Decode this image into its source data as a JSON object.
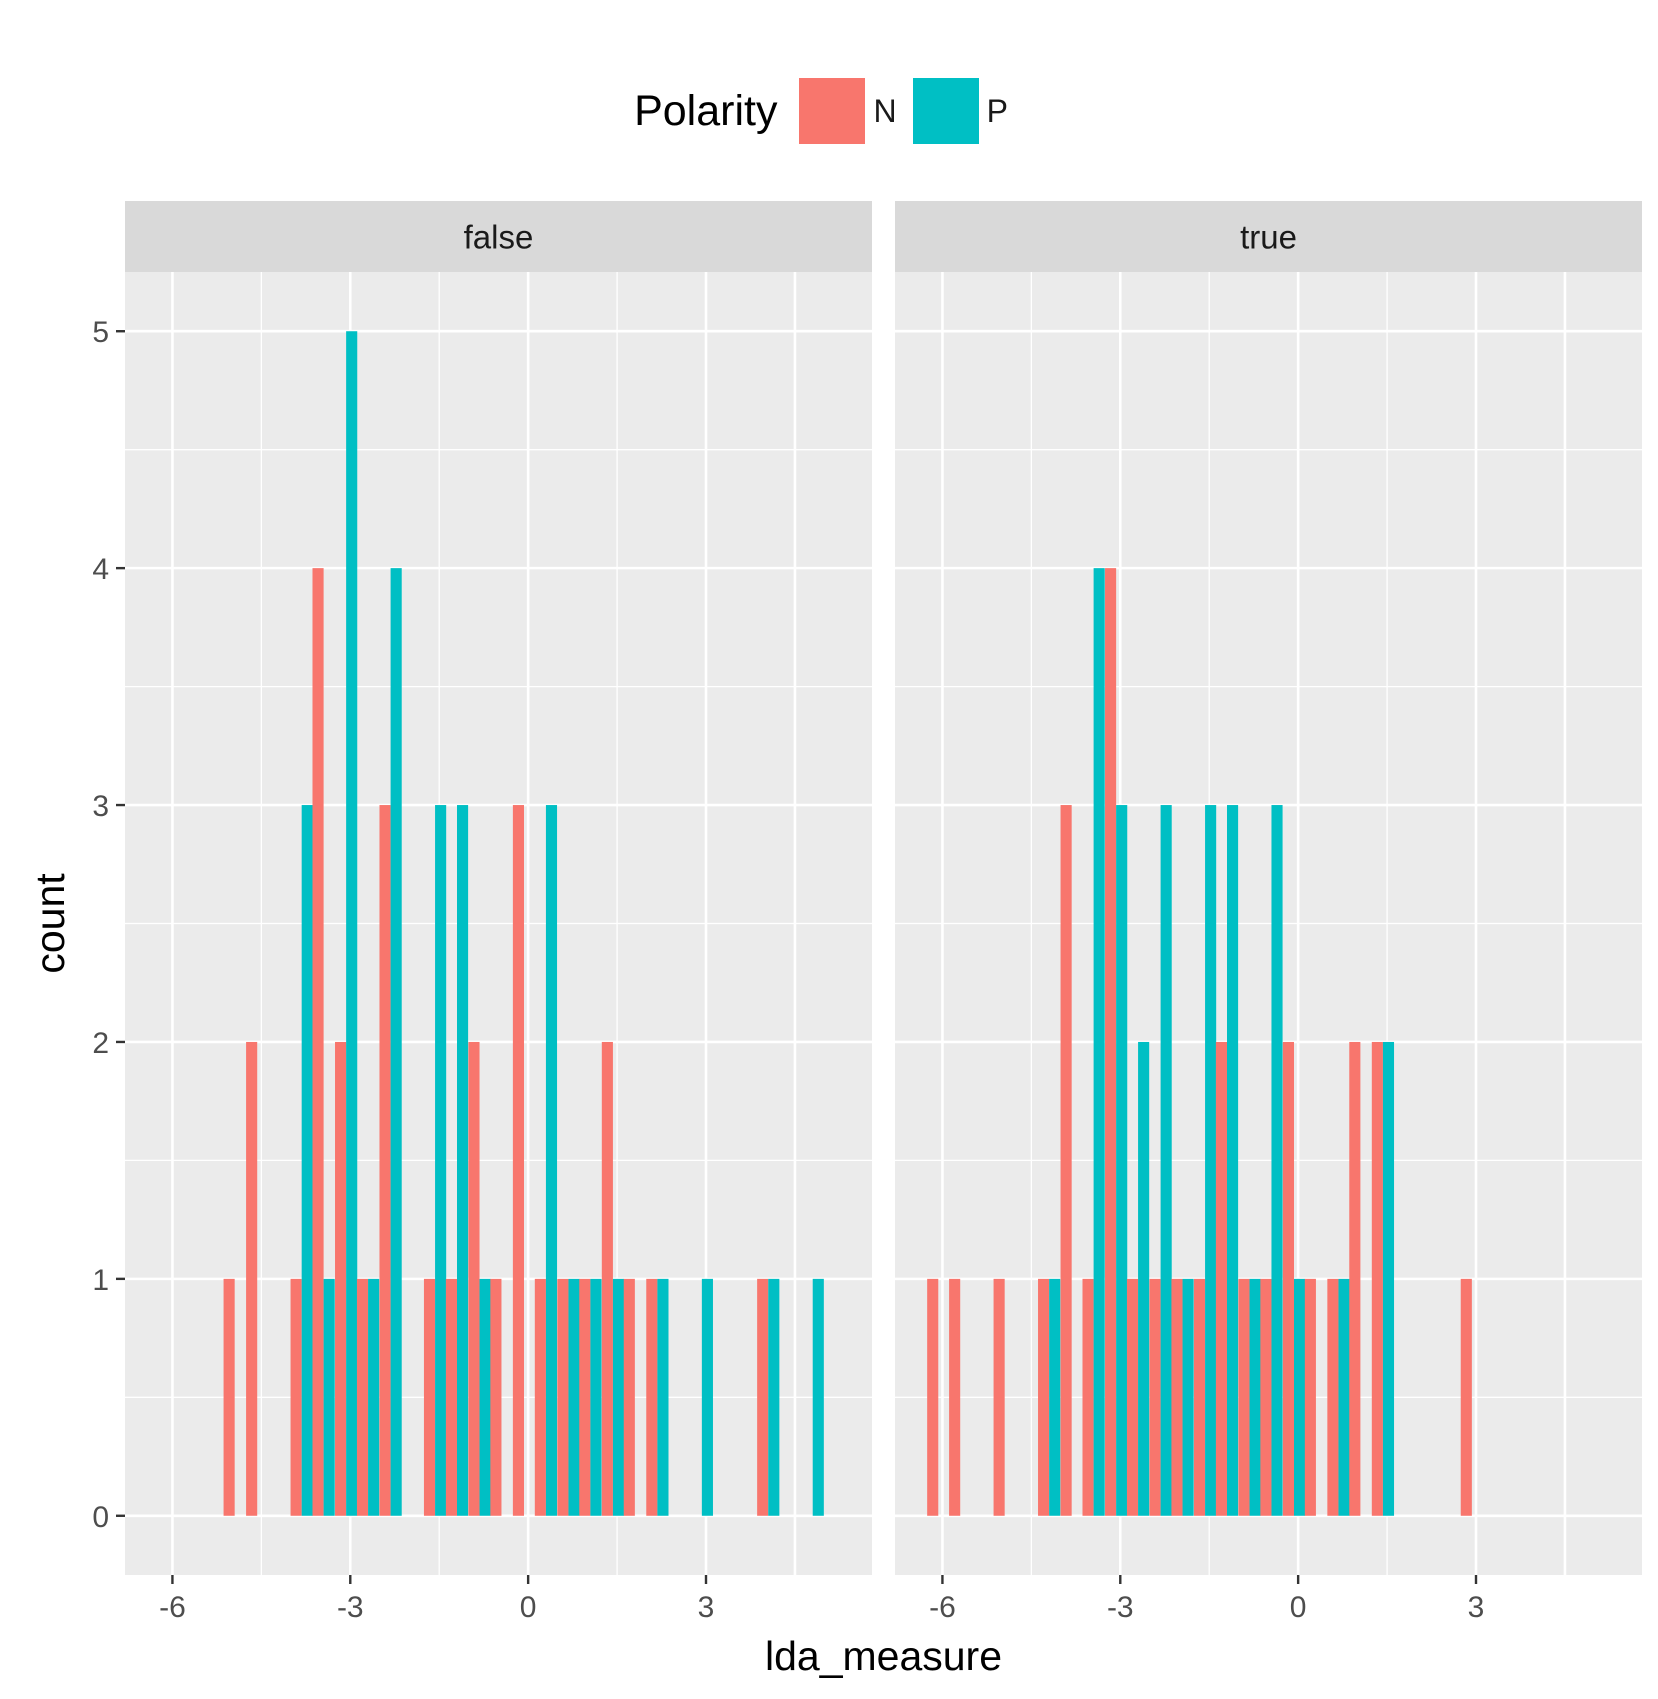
{
  "legend": {
    "title": "Polarity",
    "items": [
      {
        "label": "N",
        "color": "#F8766D"
      },
      {
        "label": "P",
        "color": "#00BFC4"
      }
    ]
  },
  "chart_data": {
    "type": "bar",
    "subtype": "faceted dodged histogram",
    "xlabel": "lda_measure",
    "ylabel": "count",
    "xlim": [
      -6.8,
      5.8
    ],
    "ylim": [
      -0.25,
      5.25
    ],
    "x_ticks": [
      -6,
      -3,
      0,
      3
    ],
    "y_ticks": [
      0,
      1,
      2,
      3,
      4,
      5
    ],
    "grid": true,
    "legend_position": "top",
    "bin_width": 0.375,
    "series_names": [
      "N",
      "P"
    ],
    "facets": [
      {
        "label": "false",
        "bins": [
          {
            "x": -4.95,
            "N": 1,
            "P": 0
          },
          {
            "x": -4.57,
            "N": 2,
            "P": 0
          },
          {
            "x": -3.82,
            "N": 1,
            "P": 3
          },
          {
            "x": -3.45,
            "N": 4,
            "P": 1
          },
          {
            "x": -3.07,
            "N": 2,
            "P": 5
          },
          {
            "x": -2.7,
            "N": 1,
            "P": 1
          },
          {
            "x": -2.32,
            "N": 3,
            "P": 4
          },
          {
            "x": -1.57,
            "N": 1,
            "P": 3
          },
          {
            "x": -1.2,
            "N": 1,
            "P": 3
          },
          {
            "x": -0.82,
            "N": 2,
            "P": 1
          },
          {
            "x": -0.45,
            "N": 1,
            "P": 0
          },
          {
            "x": -0.07,
            "N": 3,
            "P": 0
          },
          {
            "x": 0.3,
            "N": 1,
            "P": 3
          },
          {
            "x": 0.68,
            "N": 1,
            "P": 1
          },
          {
            "x": 1.05,
            "N": 1,
            "P": 1
          },
          {
            "x": 1.43,
            "N": 2,
            "P": 1
          },
          {
            "x": 1.8,
            "N": 1,
            "P": 0
          },
          {
            "x": 2.18,
            "N": 1,
            "P": 1
          },
          {
            "x": 2.93,
            "N": 0,
            "P": 1
          },
          {
            "x": 4.05,
            "N": 1,
            "P": 1
          },
          {
            "x": 4.8,
            "N": 0,
            "P": 1
          }
        ]
      },
      {
        "label": "true",
        "bins": [
          {
            "x": -6.07,
            "N": 1,
            "P": 0
          },
          {
            "x": -5.7,
            "N": 1,
            "P": 0
          },
          {
            "x": -4.95,
            "N": 1,
            "P": 0
          },
          {
            "x": -4.2,
            "N": 1,
            "P": 1
          },
          {
            "x": -3.82,
            "N": 3,
            "P": 0
          },
          {
            "x": -3.45,
            "N": 1,
            "P": 4
          },
          {
            "x": -3.07,
            "N": 4,
            "P": 3
          },
          {
            "x": -2.7,
            "N": 1,
            "P": 2
          },
          {
            "x": -2.32,
            "N": 1,
            "P": 3
          },
          {
            "x": -1.95,
            "N": 1,
            "P": 1
          },
          {
            "x": -1.57,
            "N": 1,
            "P": 3
          },
          {
            "x": -1.2,
            "N": 2,
            "P": 3
          },
          {
            "x": -0.82,
            "N": 1,
            "P": 1
          },
          {
            "x": -0.45,
            "N": 1,
            "P": 3
          },
          {
            "x": -0.07,
            "N": 2,
            "P": 1
          },
          {
            "x": 0.3,
            "N": 1,
            "P": 0
          },
          {
            "x": 0.68,
            "N": 1,
            "P": 1
          },
          {
            "x": 1.05,
            "N": 2,
            "P": 0
          },
          {
            "x": 1.43,
            "N": 2,
            "P": 2
          },
          {
            "x": 2.93,
            "N": 1,
            "P": 0
          }
        ]
      }
    ]
  }
}
